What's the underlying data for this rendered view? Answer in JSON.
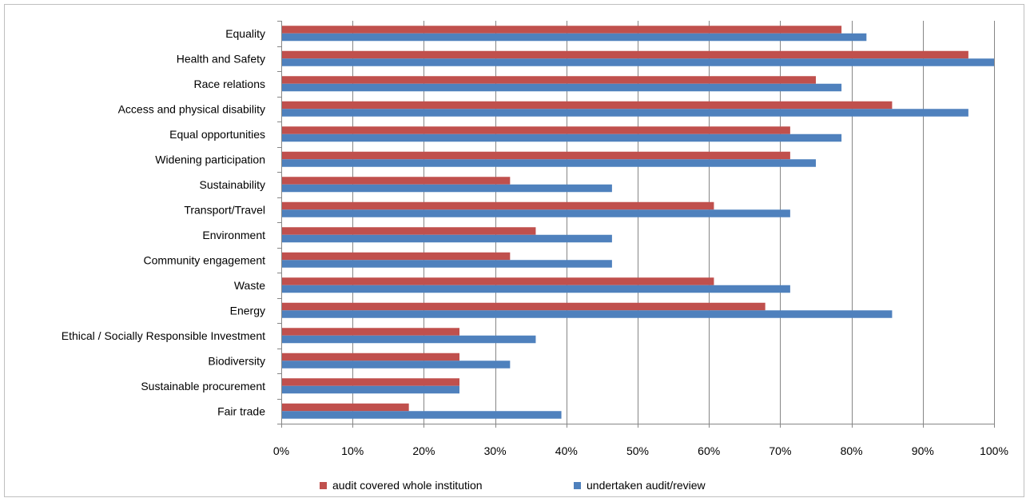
{
  "chart_data": {
    "type": "bar",
    "orientation": "horizontal",
    "title": "",
    "xlabel": "",
    "ylabel": "",
    "xlim": [
      0,
      100
    ],
    "x_ticks": [
      "0%",
      "10%",
      "20%",
      "30%",
      "40%",
      "50%",
      "60%",
      "70%",
      "80%",
      "90%",
      "100%"
    ],
    "grid": "vertical",
    "legend_position": "bottom",
    "categories": [
      "Equality",
      "Health and Safety",
      "Race relations",
      "Access and physical disability",
      "Equal opportunities",
      "Widening participation",
      "Sustainability",
      "Transport/Travel",
      "Environment",
      "Community engagement",
      "Waste",
      "Energy",
      "Ethical / Socially Responsible Investment",
      "Biodiversity",
      "Sustainable procurement",
      "Fair trade"
    ],
    "series": [
      {
        "name": "audit covered whole institution",
        "color": "#C0504D",
        "values": [
          78.6,
          96.4,
          75.0,
          85.7,
          71.4,
          71.4,
          32.1,
          60.7,
          35.7,
          32.1,
          60.7,
          67.9,
          25.0,
          25.0,
          25.0,
          17.9
        ]
      },
      {
        "name": "undertaken audit/review",
        "color": "#4F81BD",
        "values": [
          82.1,
          100.0,
          78.6,
          96.4,
          78.6,
          75.0,
          46.4,
          71.4,
          46.4,
          46.4,
          71.4,
          85.7,
          35.7,
          32.1,
          25.0,
          39.3
        ]
      }
    ]
  },
  "colors": {
    "gridline": "#868686",
    "frame": "#BFBFBF"
  }
}
